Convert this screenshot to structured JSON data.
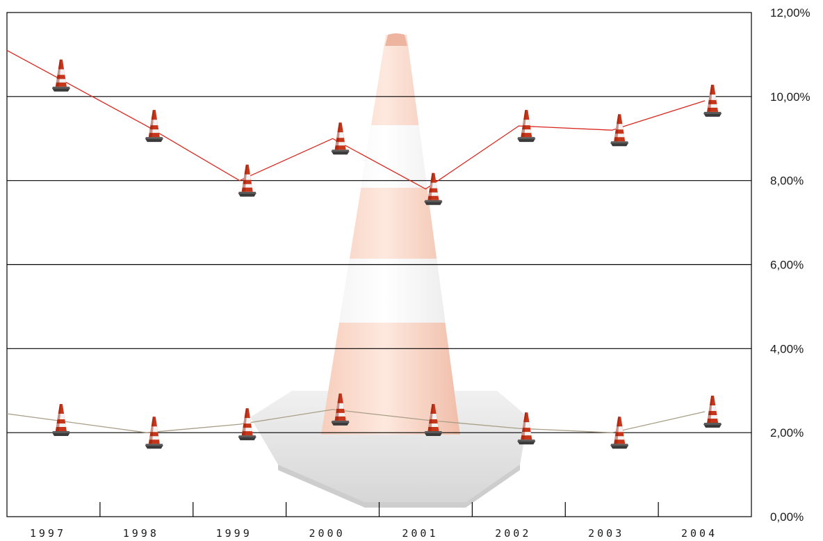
{
  "chart_data": {
    "type": "line",
    "categories": [
      "1997",
      "1998",
      "1999",
      "2000",
      "2001",
      "2002",
      "2003",
      "2004"
    ],
    "series": [
      {
        "values": [
          10.5,
          9.3,
          8.0,
          9.0,
          7.8,
          9.3,
          9.2,
          9.9
        ],
        "color": "#d9261c"
      },
      {
        "values": [
          2.3,
          2.0,
          2.2,
          2.55,
          2.3,
          2.1,
          2.0,
          2.5
        ],
        "color": "#a89d86"
      }
    ],
    "y_ticks": [
      "0,00%",
      "2,00%",
      "4,00%",
      "6,00%",
      "8,00%",
      "10,00%",
      "12,00%"
    ],
    "ylim": [
      0,
      12
    ],
    "grid": true,
    "y_axis_position": "right",
    "marker_icon": "traffic-cone-icon",
    "background_icon": "traffic-cone-icon"
  }
}
